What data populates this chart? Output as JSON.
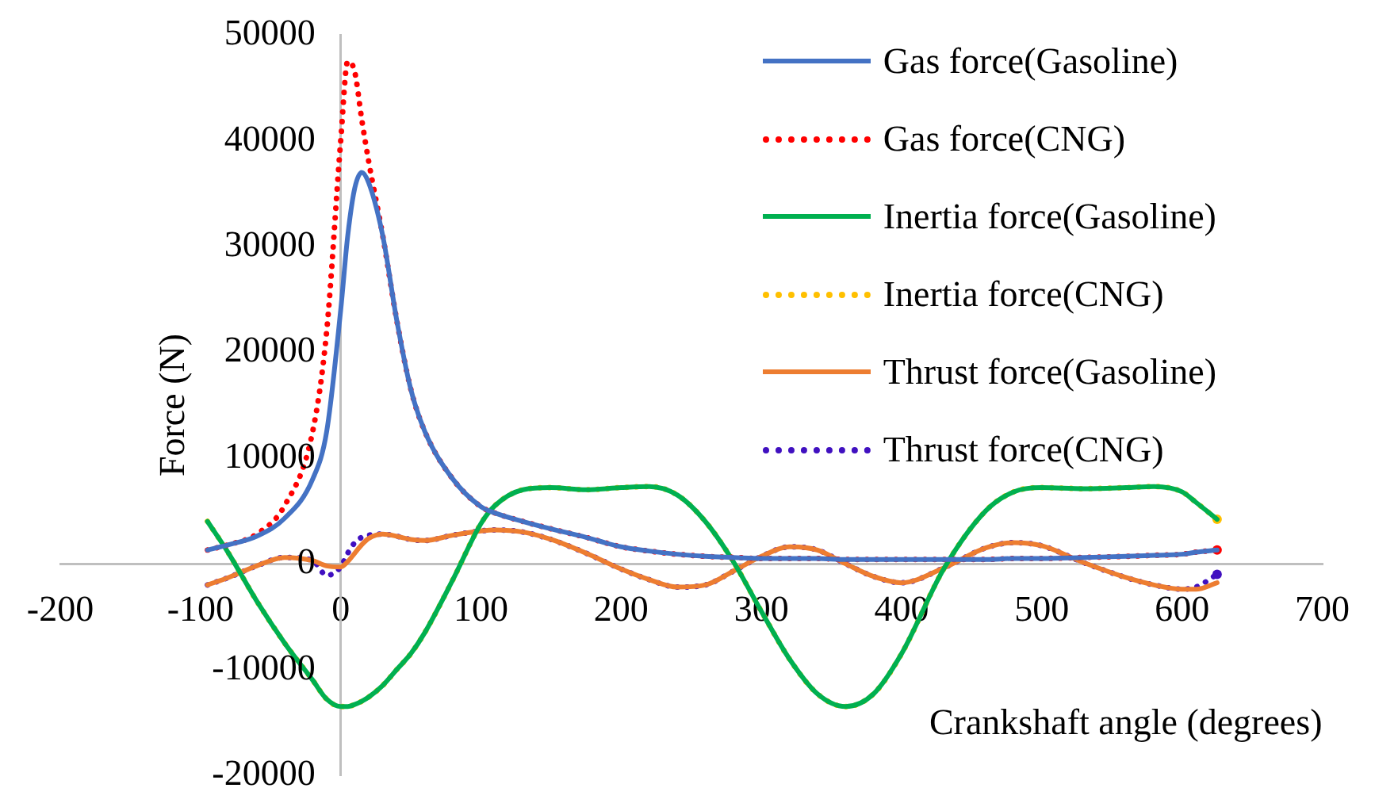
{
  "chart_data": {
    "type": "line",
    "xlabel": "Crankshaft angle (degrees)",
    "ylabel": "Force (N)",
    "xlim": [
      -200,
      700
    ],
    "xticks": [
      -200,
      -100,
      0,
      100,
      200,
      300,
      400,
      500,
      600,
      700
    ],
    "ylim": [
      -20000,
      50000
    ],
    "yticks": [
      -20000,
      -10000,
      0,
      10000,
      20000,
      30000,
      40000,
      50000
    ],
    "grid": false,
    "legend": "top right",
    "marker": "none",
    "x": [
      -95,
      -80,
      -60,
      -40,
      -20,
      -10,
      0,
      5,
      10,
      15,
      20,
      30,
      40,
      50,
      60,
      80,
      100,
      110,
      130,
      150,
      175,
      200,
      220,
      240,
      260,
      280,
      300,
      320,
      340,
      360,
      380,
      400,
      430,
      460,
      480,
      500,
      530,
      560,
      580,
      600,
      610,
      625
    ],
    "series": [
      {
        "name": "Gas force(Gasoline)",
        "color": "#4472c4",
        "line_style": "solid",
        "values": [
          1300,
          1800,
          2600,
          4300,
          8000,
          12500,
          24000,
          31000,
          35500,
          37000,
          36000,
          31000,
          23000,
          16500,
          12500,
          8000,
          5400,
          4800,
          4000,
          3300,
          2500,
          1600,
          1200,
          900,
          700,
          600,
          500,
          500,
          500,
          400,
          400,
          400,
          400,
          400,
          500,
          500,
          600,
          700,
          800,
          900,
          1100,
          1300
        ]
      },
      {
        "name": "Gas force(CNG)",
        "color": "#ff0000",
        "line_style": "dotted",
        "values": [
          1300,
          1800,
          2800,
          5500,
          12500,
          22000,
          40000,
          47500,
          46500,
          42000,
          38000,
          31000,
          23000,
          16500,
          12500,
          8000,
          5400,
          4800,
          4000,
          3300,
          2500,
          1600,
          1200,
          900,
          700,
          600,
          500,
          500,
          500,
          400,
          400,
          400,
          400,
          400,
          500,
          500,
          600,
          700,
          800,
          900,
          1100,
          1300
        ]
      },
      {
        "name": "Inertia force(Gasoline)",
        "color": "#00b050",
        "line_style": "solid",
        "values": [
          4000,
          1000,
          -3500,
          -7500,
          -11000,
          -12800,
          -13500,
          -13500,
          -13300,
          -13000,
          -12600,
          -11500,
          -10000,
          -8500,
          -6500,
          -1500,
          3800,
          5500,
          7000,
          7200,
          7000,
          7200,
          7300,
          6500,
          4000,
          200,
          -4500,
          -9000,
          -12300,
          -13500,
          -12300,
          -8500,
          -500,
          5000,
          6800,
          7200,
          7100,
          7200,
          7300,
          6800,
          5800,
          4200
        ]
      },
      {
        "name": "Inertia force(CNG)",
        "color": "#ffc000",
        "line_style": "dotted",
        "values": [
          4000,
          1000,
          -3500,
          -7500,
          -11000,
          -12800,
          -13500,
          -13500,
          -13300,
          -13000,
          -12600,
          -11500,
          -10000,
          -8500,
          -6500,
          -1500,
          3800,
          5500,
          7000,
          7200,
          7000,
          7200,
          7300,
          6500,
          4000,
          200,
          -4500,
          -9000,
          -12300,
          -13500,
          -12300,
          -8500,
          -500,
          5000,
          6800,
          7200,
          7100,
          7200,
          7300,
          6800,
          5800,
          4200
        ]
      },
      {
        "name": "Thrust force(Gasoline)",
        "color": "#ed7d31",
        "line_style": "solid",
        "values": [
          -2000,
          -1300,
          -200,
          600,
          300,
          -200,
          -300,
          200,
          1000,
          1800,
          2400,
          2800,
          2600,
          2300,
          2200,
          2700,
          3100,
          3200,
          3000,
          2300,
          1000,
          -500,
          -1500,
          -2200,
          -2000,
          -700,
          700,
          1600,
          1300,
          0,
          -1200,
          -1800,
          -400,
          1500,
          2000,
          1700,
          100,
          -1300,
          -2000,
          -2400,
          -2400,
          -1800
        ]
      },
      {
        "name": "Thrust force(CNG)",
        "color": "#4010c0",
        "line_style": "dotted",
        "values": [
          -2000,
          -1300,
          -200,
          600,
          300,
          -1100,
          -300,
          1000,
          2000,
          2500,
          2700,
          2800,
          2600,
          2300,
          2200,
          2700,
          3100,
          3200,
          3000,
          2300,
          1000,
          -500,
          -1500,
          -2200,
          -2000,
          -700,
          700,
          1600,
          1300,
          0,
          -1200,
          -1800,
          -400,
          1500,
          2000,
          1700,
          100,
          -1300,
          -2000,
          -2400,
          -2200,
          -1000
        ]
      }
    ]
  }
}
